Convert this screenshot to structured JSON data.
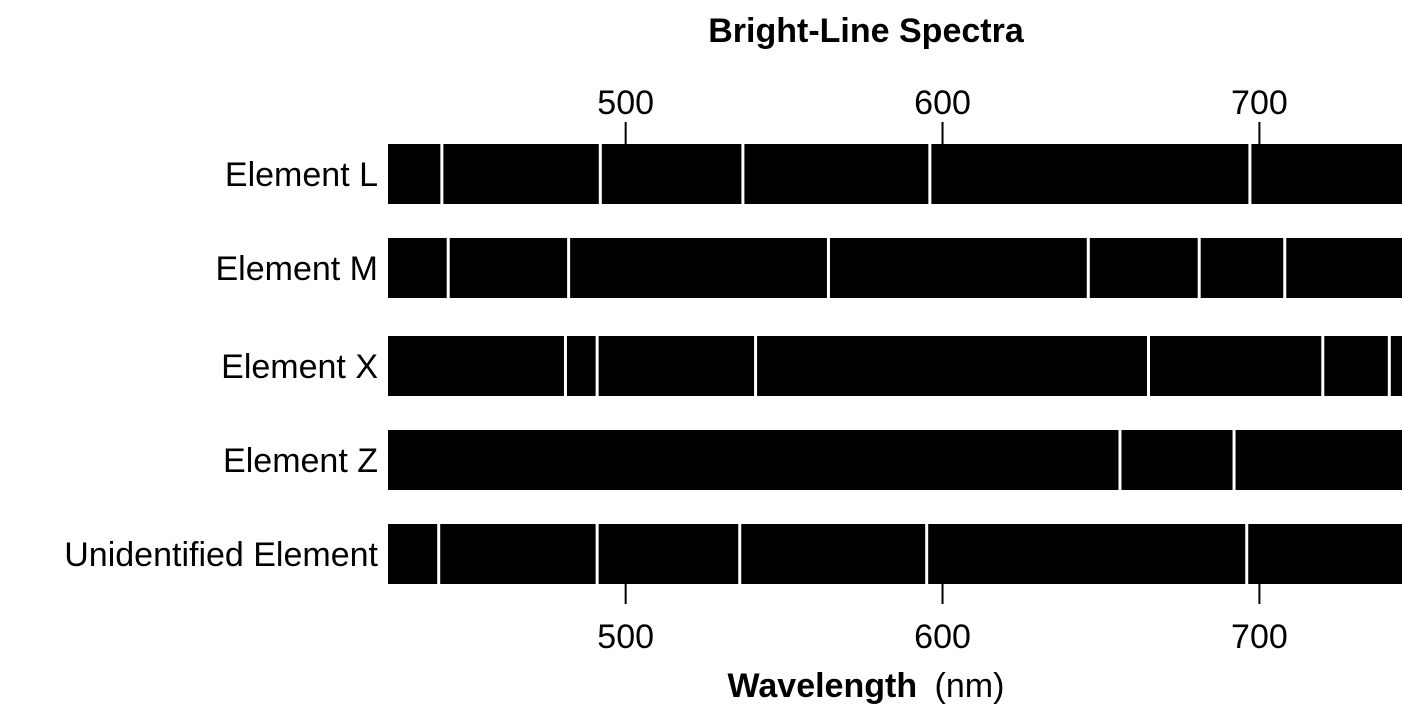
{
  "chart_data": {
    "type": "spectra",
    "title": "Bright-Line Spectra",
    "xlabel_bold": "Wavelength",
    "xlabel_unit": "(nm)",
    "xlim": [
      425,
      745
    ],
    "x_ticks": [
      500,
      600,
      700
    ],
    "x_tick_labels": [
      "500",
      "600",
      "700"
    ],
    "band_color": "#000000",
    "line_color": "#ffffff",
    "spectra": [
      {
        "label": "Element L",
        "lines": [
          442,
          492,
          537,
          596,
          697
        ]
      },
      {
        "label": "Element M",
        "lines": [
          444,
          482,
          564,
          646,
          681,
          708
        ]
      },
      {
        "label": "Element X",
        "lines": [
          481,
          491,
          541,
          665,
          720,
          741
        ]
      },
      {
        "label": "Element Z",
        "lines": [
          656,
          692
        ]
      },
      {
        "label": "Unidentified Element",
        "lines": [
          441,
          491,
          536,
          595,
          696
        ]
      }
    ]
  }
}
